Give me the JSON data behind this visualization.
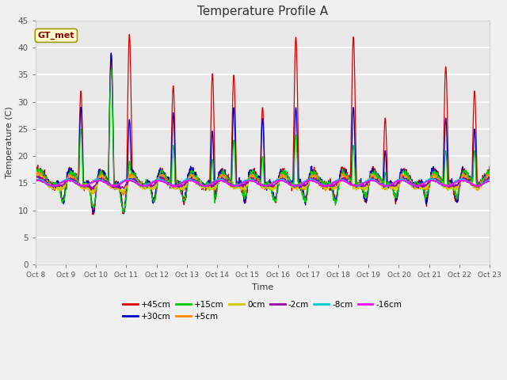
{
  "title": "Temperature Profile A",
  "xlabel": "Time",
  "ylabel": "Temperature (C)",
  "ylim": [
    0,
    45
  ],
  "fig_bg": "#f0f0f0",
  "plot_bg": "#e8e8e8",
  "grid_color": "#ffffff",
  "annotation_text": "GT_met",
  "annotation_color": "#880000",
  "annotation_bg": "#ffffcc",
  "annotation_edge": "#999900",
  "series": [
    {
      "label": "+45cm",
      "color": "#dd0000"
    },
    {
      "label": "+30cm",
      "color": "#0000cc"
    },
    {
      "label": "+15cm",
      "color": "#00cc00"
    },
    {
      "label": "+5cm",
      "color": "#ff8800"
    },
    {
      "label": "0cm",
      "color": "#cccc00"
    },
    {
      "label": "-2cm",
      "color": "#9900aa"
    },
    {
      "label": "-8cm",
      "color": "#00cccc"
    },
    {
      "label": "-16cm",
      "color": "#ff00ff"
    }
  ],
  "xtick_labels": [
    "Oct 8",
    "Oct 9",
    "Oct 10",
    "Oct 11",
    "Oct 12",
    "Oct 13",
    "Oct 14",
    "Oct 15",
    "Oct 16",
    "Oct 17",
    "Oct 18",
    "Oct 19",
    "Oct 20",
    "Oct 21",
    "Oct 22",
    "Oct 23"
  ],
  "ytick_vals": [
    0,
    5,
    10,
    15,
    20,
    25,
    30,
    35,
    40,
    45
  ],
  "days": 15
}
